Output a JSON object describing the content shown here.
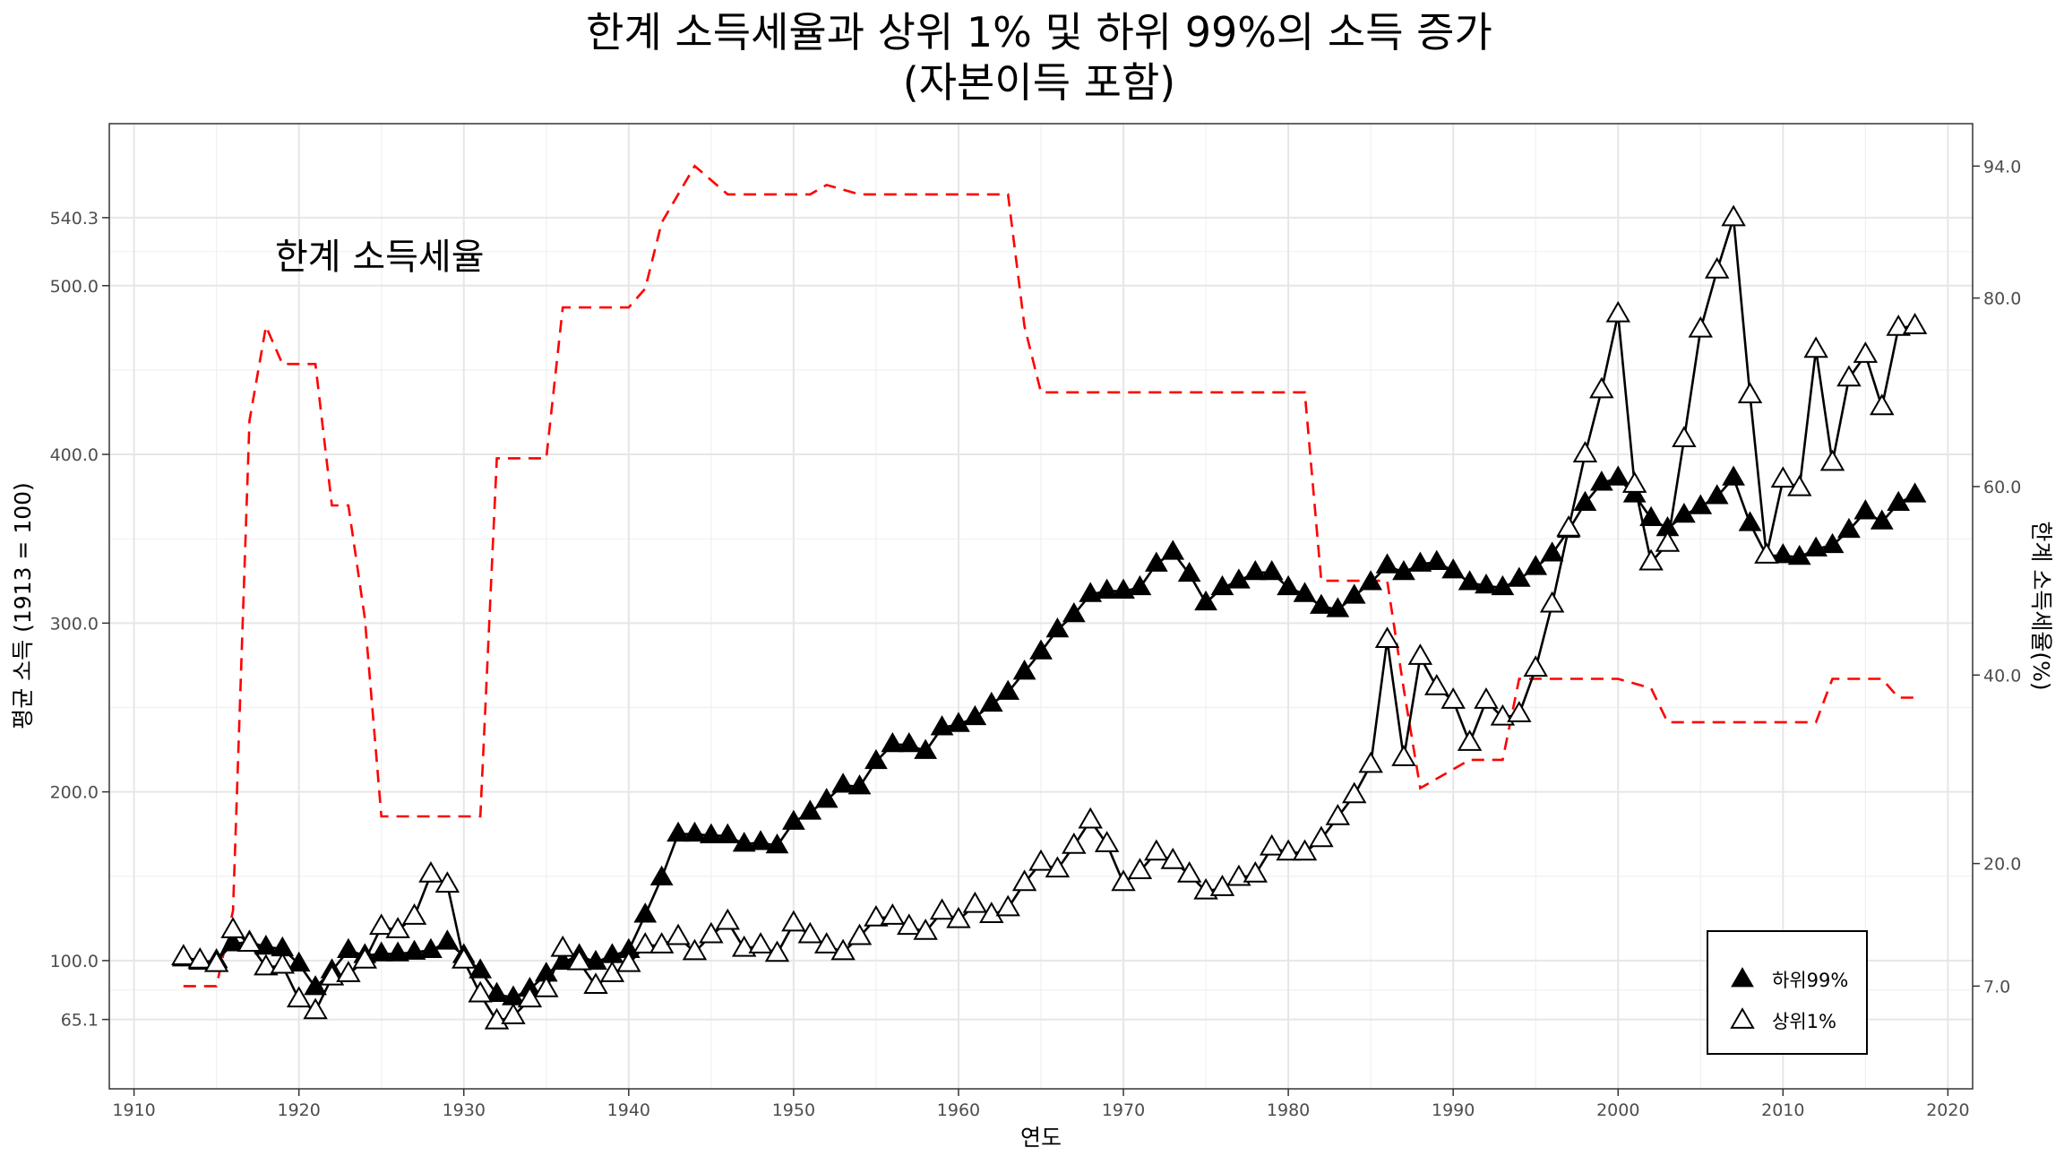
{
  "chart_data": {
    "type": "line",
    "title": [
      "한계 소득세율과 상위 1% 및 하위 99%의 소득 증가",
      "(자본이득 포함)"
    ],
    "xlabel": "연도",
    "ylabel": "평균 소득 (1913 = 100)",
    "y2label": "한계 소득세율(%)",
    "xlim": [
      1908.5,
      2021.5
    ],
    "ylim": [
      24,
      596
    ],
    "y2lim": [
      -3.9,
      98.5
    ],
    "x_ticks": [
      1910,
      1920,
      1930,
      1940,
      1950,
      1960,
      1970,
      1980,
      1990,
      2000,
      2010,
      2020
    ],
    "y_ticks": [
      65.1,
      100.0,
      200.0,
      300.0,
      400.0,
      500.0,
      540.3
    ],
    "y_tick_labels": [
      "65.1",
      "100.0",
      "200.0",
      "300.0",
      "400.0",
      "500.0",
      "540.3"
    ],
    "y2_ticks": [
      7.0,
      20.0,
      40.0,
      60.0,
      80.0,
      94.0
    ],
    "y2_tick_labels": [
      "7.0",
      "20.0",
      "40.0",
      "60.0",
      "80.0",
      "94.0"
    ],
    "grid": true,
    "legend_position": "bottom-right",
    "annotation": "한계 소득세율",
    "series": [
      {
        "name": "하위99%",
        "marker": "filled-triangle",
        "axis": "left",
        "color": "#000000",
        "x": [
          1913,
          1914,
          1915,
          1916,
          1917,
          1918,
          1919,
          1920,
          1921,
          1922,
          1923,
          1924,
          1925,
          1926,
          1927,
          1928,
          1929,
          1930,
          1931,
          1932,
          1933,
          1934,
          1935,
          1936,
          1937,
          1938,
          1939,
          1940,
          1941,
          1942,
          1943,
          1944,
          1945,
          1946,
          1947,
          1948,
          1949,
          1950,
          1951,
          1952,
          1953,
          1954,
          1955,
          1956,
          1957,
          1958,
          1959,
          1960,
          1961,
          1962,
          1963,
          1964,
          1965,
          1966,
          1967,
          1968,
          1969,
          1970,
          1971,
          1972,
          1973,
          1974,
          1975,
          1976,
          1977,
          1978,
          1979,
          1980,
          1981,
          1982,
          1983,
          1984,
          1985,
          1986,
          1987,
          1988,
          1989,
          1990,
          1991,
          1992,
          1993,
          1994,
          1995,
          1996,
          1997,
          1998,
          1999,
          2000,
          2001,
          2002,
          2003,
          2004,
          2005,
          2006,
          2007,
          2008,
          2009,
          2010,
          2011,
          2012,
          2013,
          2014,
          2015,
          2016,
          2017,
          2018
        ],
        "values": [
          101,
          99,
          100,
          110,
          111,
          108,
          107,
          98,
          84,
          94,
          106,
          103,
          104,
          104,
          105,
          106,
          111,
          103,
          94,
          80,
          78,
          83,
          92,
          99,
          103,
          99,
          103,
          106,
          127,
          149,
          175,
          175,
          174,
          174,
          169,
          170,
          168,
          182,
          188,
          195,
          204,
          203,
          218,
          228,
          228,
          224,
          238,
          240,
          244,
          252,
          259,
          271,
          283,
          296,
          305,
          317,
          319,
          319,
          321,
          335,
          342,
          329,
          312,
          321,
          325,
          330,
          330,
          321,
          317,
          310,
          308,
          316,
          324,
          334,
          330,
          335,
          336,
          331,
          324,
          322,
          321,
          326,
          333,
          341,
          355,
          371,
          383,
          386,
          376,
          362,
          356,
          364,
          369,
          375,
          386,
          359,
          340,
          340,
          339,
          344,
          346,
          355,
          366,
          360,
          371,
          376
        ]
      },
      {
        "name": "상위1%",
        "marker": "open-triangle",
        "axis": "left",
        "color": "#000000",
        "x": [
          1913,
          1914,
          1915,
          1916,
          1917,
          1918,
          1919,
          1920,
          1921,
          1922,
          1923,
          1924,
          1925,
          1926,
          1927,
          1928,
          1929,
          1930,
          1931,
          1932,
          1933,
          1934,
          1935,
          1936,
          1937,
          1938,
          1939,
          1940,
          1941,
          1942,
          1943,
          1944,
          1945,
          1946,
          1947,
          1948,
          1949,
          1950,
          1951,
          1952,
          1953,
          1954,
          1955,
          1956,
          1957,
          1958,
          1959,
          1960,
          1961,
          1962,
          1963,
          1964,
          1965,
          1966,
          1967,
          1968,
          1969,
          1970,
          1971,
          1972,
          1973,
          1974,
          1975,
          1976,
          1977,
          1978,
          1979,
          1980,
          1981,
          1982,
          1983,
          1984,
          1985,
          1986,
          1987,
          1988,
          1989,
          1990,
          1991,
          1992,
          1993,
          1994,
          1995,
          1996,
          1997,
          1998,
          1999,
          2000,
          2001,
          2002,
          2003,
          2004,
          2005,
          2006,
          2007,
          2008,
          2009,
          2010,
          2011,
          2012,
          2013,
          2014,
          2015,
          2016,
          2017,
          2018
        ],
        "values": [
          102,
          100,
          98,
          118,
          110,
          96,
          97,
          77,
          70,
          90,
          92,
          100,
          120,
          118,
          126,
          151,
          145,
          100,
          80,
          64,
          67,
          77,
          83,
          107,
          99,
          85,
          92,
          98,
          109,
          109,
          114,
          105,
          115,
          123,
          107,
          109,
          104,
          122,
          115,
          109,
          105,
          114,
          125,
          126,
          120,
          117,
          129,
          124,
          133,
          127,
          131,
          146,
          158,
          154,
          168,
          183,
          169,
          146,
          153,
          164,
          159,
          151,
          141,
          143,
          149,
          151,
          167,
          164,
          164,
          172,
          185,
          198,
          216,
          290,
          220,
          280,
          262,
          254,
          229,
          254,
          244,
          246,
          273,
          311,
          356,
          400,
          438,
          483,
          382,
          336,
          347,
          409,
          474,
          509,
          540,
          435,
          340,
          385,
          380,
          462,
          395,
          445,
          459,
          428,
          475,
          476
        ]
      },
      {
        "name": "",
        "style": "dashed-step",
        "axis": "right",
        "color": "#ff0000",
        "x": [
          1913,
          1915,
          1916,
          1917,
          1918,
          1919,
          1921,
          1922,
          1923,
          1924,
          1925,
          1931,
          1932,
          1935,
          1936,
          1940,
          1941,
          1942,
          1944,
          1946,
          1951,
          1952,
          1954,
          1963,
          1964,
          1965,
          1981,
          1982,
          1986,
          1987,
          1988,
          1991,
          1993,
          1994,
          2000,
          2001,
          2002,
          2003,
          2012,
          2013,
          2016,
          2017,
          2018
        ],
        "values": [
          7,
          7,
          15,
          67,
          77,
          73,
          73,
          58,
          58,
          46,
          25,
          25,
          63,
          63,
          79,
          79,
          81,
          88,
          94,
          91,
          91,
          92,
          91,
          91,
          77,
          70,
          70,
          50,
          50,
          38.5,
          28,
          31,
          31,
          39.6,
          39.6,
          39.1,
          38.6,
          35,
          35,
          39.6,
          39.6,
          37.6,
          37.6
        ]
      }
    ]
  }
}
